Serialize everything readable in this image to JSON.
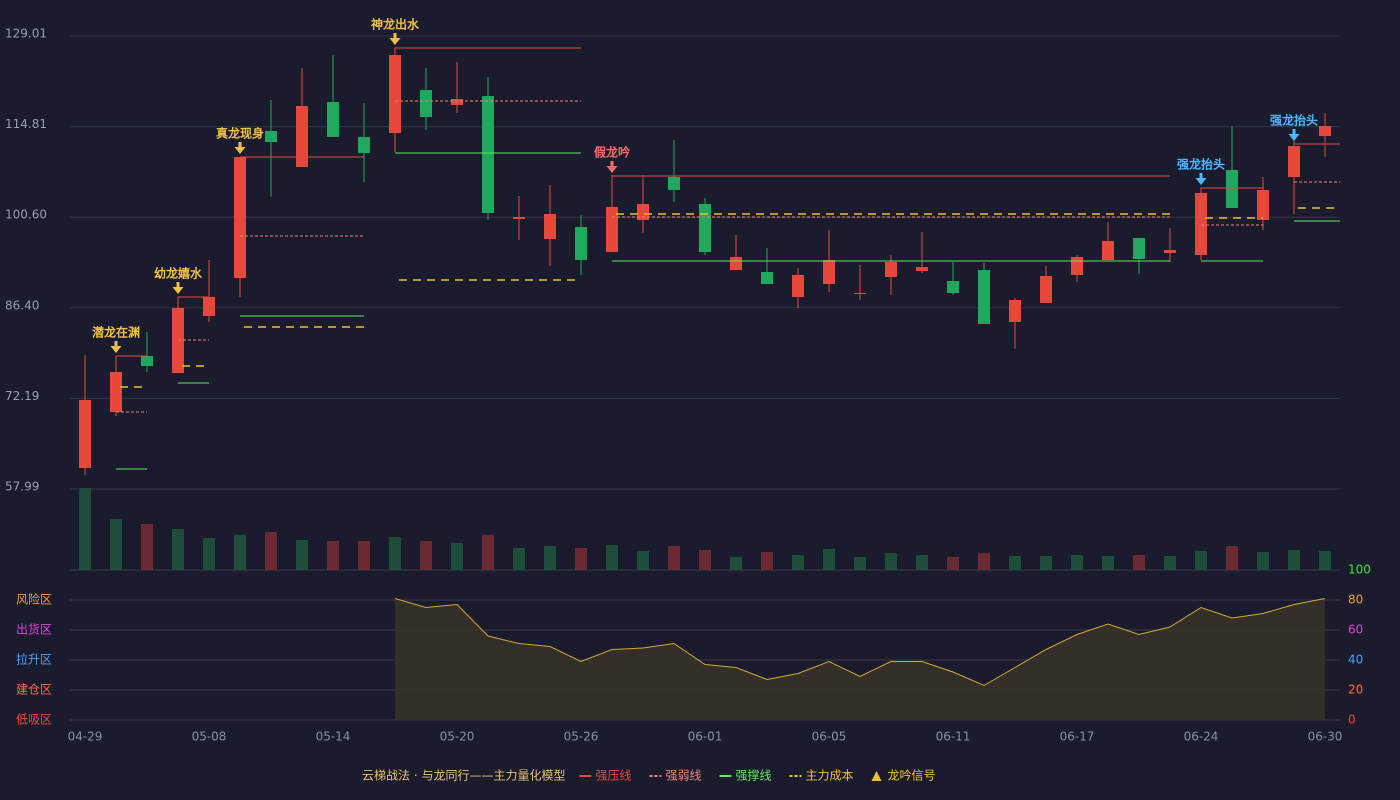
{
  "chart_data": [
    {
      "type": "candlestick",
      "grid": true,
      "ylim": [
        57.99,
        129.01
      ],
      "yticks": [
        129.01,
        114.81,
        {
          "value": 100.6,
          "label": "100.60"
        },
        {
          "value": 86.4,
          "label": "86.40"
        },
        72.19,
        57.99
      ],
      "colors": {
        "up": "#e8483c",
        "down": "#1fa85e"
      },
      "open": [
        61.28,
        70.06,
        78.84,
        76.17,
        85.11,
        91.07,
        114.12,
        108.47,
        118.66,
        113.18,
        113.8,
        120.54,
        118.19,
        119.6,
        100.32,
        97.18,
        99.06,
        95.14,
        100.16,
        106.9,
        102.67,
        92.32,
        92.01,
        88.09,
        90.13,
        88.56,
        91.23,
        92.17,
        90.6,
        92.32,
        84.17,
        87.15,
        91.54,
        93.89,
        97.34,
        94.99,
        94.68,
        108.0,
        100.16,
        106.9,
        113.33
      ],
      "high": [
        78.99,
        76.33,
        82.6,
        86.37,
        93.89,
        110.04,
        118.98,
        123.99,
        126.03,
        118.51,
        126.03,
        123.99,
        124.93,
        122.58,
        103.93,
        105.65,
        100.95,
        107.22,
        107.22,
        112.7,
        103.61,
        97.81,
        95.77,
        92.64,
        98.59,
        93.11,
        94.68,
        98.28,
        93.58,
        93.42,
        87.93,
        92.95,
        94.68,
        99.85,
        97.34,
        98.91,
        105.18,
        114.9,
        106.9,
        112.7,
        116.94
      ],
      "low": [
        60.18,
        69.43,
        76.33,
        76.17,
        84.17,
        88.09,
        103.77,
        108.47,
        113.18,
        106.12,
        110.82,
        114.27,
        116.94,
        100.16,
        97.03,
        92.95,
        91.54,
        95.14,
        98.12,
        102.98,
        94.68,
        92.32,
        90.13,
        86.37,
        88.87,
        87.62,
        88.4,
        91.85,
        88.4,
        83.86,
        79.94,
        87.15,
        90.44,
        93.89,
        91.7,
        93.58,
        93.89,
        102.04,
        98.59,
        101.1,
        110.04
      ],
      "close": [
        71.94,
        76.33,
        77.27,
        86.37,
        88.09,
        110.04,
        112.39,
        118.04,
        113.18,
        110.67,
        126.03,
        116.31,
        119.13,
        101.26,
        100.63,
        101.1,
        93.89,
        102.2,
        102.67,
        104.87,
        95.14,
        94.36,
        90.13,
        91.54,
        93.89,
        88.72,
        93.58,
        92.79,
        88.72,
        83.86,
        87.62,
        91.38,
        94.36,
        96.87,
        94.05,
        95.46,
        104.4,
        102.04,
        104.87,
        111.76,
        114.9
      ],
      "volume": [
        82,
        51,
        46,
        41,
        32,
        35,
        38,
        30,
        29,
        29,
        33,
        29,
        27,
        35,
        22,
        24,
        22,
        25,
        19,
        24,
        20,
        13,
        18,
        15,
        21,
        13,
        17,
        15,
        13,
        17,
        14,
        14,
        15,
        14,
        15,
        14,
        19,
        24,
        18,
        20,
        19
      ],
      "volume_colors": [
        "#1f4d3c",
        "#1f4d3c",
        "#6b2a33",
        "#1f4d3c",
        "#1f4d3c",
        "#1f4d3c",
        "#6b2a33",
        "#1f4d3c",
        "#6b2a33",
        "#6b2a33",
        "#1f4d3c",
        "#6b2a33",
        "#1f4d3c",
        "#6b2a33",
        "#1f4d3c",
        "#1f4d3c",
        "#6b2a33",
        "#1f4d3c",
        "#1f4d3c",
        "#6b2a33",
        "#6b2a33",
        "#1f4d3c",
        "#6b2a33",
        "#1f4d3c",
        "#1f4d3c",
        "#1f4d3c",
        "#1f4d3c",
        "#1f4d3c",
        "#6b2a33",
        "#6b2a33",
        "#1f4d3c",
        "#1f4d3c",
        "#1f4d3c",
        "#1f4d3c",
        "#6b2a33",
        "#1f4d3c",
        "#1f4d3c",
        "#6b2a33",
        "#1f4d3c",
        "#1f4d3c",
        "#1f4d3c"
      ],
      "signals": [
        {
          "label": "潜龙在渊",
          "color": "#f0c040",
          "index": 1,
          "end": 2,
          "press": 78.84,
          "weak": 70.06,
          "support": 61.12,
          "cost": 73.98
        },
        {
          "label": "幼龙嬉水",
          "color": "#f0c040",
          "index": 3,
          "end": 4,
          "press": 88.09,
          "weak": 81.35,
          "support": 74.61,
          "cost": 77.27
        },
        {
          "label": "真龙现身",
          "color": "#f0c040",
          "index": 5,
          "end": 9,
          "press": 110.04,
          "weak": 97.65,
          "support": 85.11,
          "cost": 83.39
        },
        {
          "label": "神龙出水",
          "color": "#f0c040",
          "index": 10,
          "end": 16,
          "press": 127.13,
          "weak": 118.82,
          "support": 110.67,
          "cost": 90.76
        },
        {
          "label": "假龙吟",
          "color": "#ff6b6b",
          "index": 17,
          "end": 35,
          "press": 107.06,
          "weak": 100.63,
          "support": 93.73,
          "cost": 101.1
        },
        {
          "label": "强龙抬头",
          "color": "#4db8ff",
          "index": 36,
          "end": 38,
          "press": 105.18,
          "weak": 99.38,
          "support": 93.73,
          "cost": 100.48
        },
        {
          "label": "强龙抬头",
          "color": "#4db8ff",
          "index": 39,
          "end": 40,
          "press": 112.08,
          "weak": 106.12,
          "support": 100.01,
          "cost": 102.04
        }
      ]
    },
    {
      "type": "area",
      "color": "#d4aa30",
      "fill": "#3a3328",
      "grid": true,
      "ylim": [
        0,
        100
      ],
      "yticks": [
        0,
        20,
        40,
        60,
        80,
        100
      ],
      "ytick_colors": [
        "#ff4040",
        "#ff6a40",
        "#4d9fff",
        "#e040e0",
        "#f0a030",
        "#40e040"
      ],
      "zones": [
        {
          "label": "风险区",
          "value": 80,
          "color": "#f0a030"
        },
        {
          "label": "出货区",
          "value": 60,
          "color": "#e040e0"
        },
        {
          "label": "拉升区",
          "value": 40,
          "color": "#4d9fff"
        },
        {
          "label": "建仓区",
          "value": 20,
          "color": "#ff6a40"
        },
        {
          "label": "低吸区",
          "value": 0,
          "color": "#ff4040"
        }
      ],
      "categories": [
        "04-29",
        null,
        null,
        null,
        "05-08",
        null,
        null,
        null,
        "05-14",
        null,
        null,
        null,
        "05-20",
        null,
        null,
        null,
        "05-26",
        null,
        null,
        null,
        "06-01",
        null,
        null,
        null,
        "06-05",
        null,
        null,
        null,
        "06-11",
        null,
        null,
        null,
        "06-17",
        null,
        null,
        null,
        "06-24",
        null,
        null,
        null,
        "06-30"
      ],
      "values": [
        null,
        null,
        null,
        null,
        null,
        null,
        null,
        null,
        null,
        null,
        81,
        75,
        77,
        56,
        51,
        49,
        39,
        47,
        48,
        51,
        37,
        35,
        27,
        31,
        39,
        29,
        39,
        39,
        32,
        23,
        35,
        47,
        57,
        64,
        57,
        62,
        75,
        68,
        71,
        77,
        81
      ]
    }
  ],
  "legend": {
    "title": "云梯战法 · 与龙同行——主力量化模型",
    "title_color": "#e8c070",
    "items": [
      {
        "label": "强压线",
        "color": "#e8483c",
        "dash": false
      },
      {
        "label": "强弱线",
        "color": "#f08080",
        "dash": true
      },
      {
        "label": "强撑线",
        "color": "#5ce65c",
        "dash": false
      },
      {
        "label": "主力成本",
        "color": "#f0c030",
        "dash": true
      },
      {
        "label": "龙吟信号",
        "color": "#f0c030",
        "marker": "triangle"
      }
    ]
  }
}
